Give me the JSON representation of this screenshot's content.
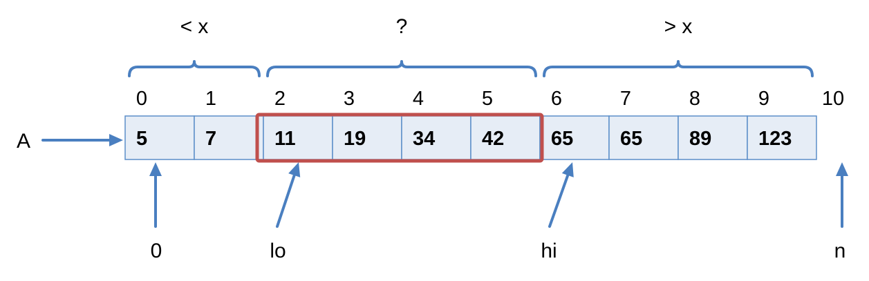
{
  "diagram": {
    "array_name": "A",
    "cells": [
      "5",
      "7",
      "11",
      "19",
      "34",
      "42",
      "65",
      "65",
      "89",
      "123"
    ],
    "indices": [
      "0",
      "1",
      "2",
      "3",
      "4",
      "5",
      "6",
      "7",
      "8",
      "9",
      "10"
    ],
    "regions": [
      {
        "label": "< x",
        "from": 0,
        "to": 2
      },
      {
        "label": "?",
        "from": 2,
        "to": 6
      },
      {
        "label": "> x",
        "from": 6,
        "to": 10
      }
    ],
    "highlight": {
      "from": 2,
      "to": 6
    },
    "pointers": [
      {
        "label": "0",
        "target_index": 0
      },
      {
        "label": "lo",
        "target_index": 2
      },
      {
        "label": "hi",
        "target_index": 6
      },
      {
        "label": "n",
        "target_index": 10
      }
    ],
    "colors": {
      "cell_fill": "#e6edf6",
      "cell_border": "#5b8ec9",
      "arrow": "#4a7fc0",
      "highlight": "#c0504d"
    }
  }
}
